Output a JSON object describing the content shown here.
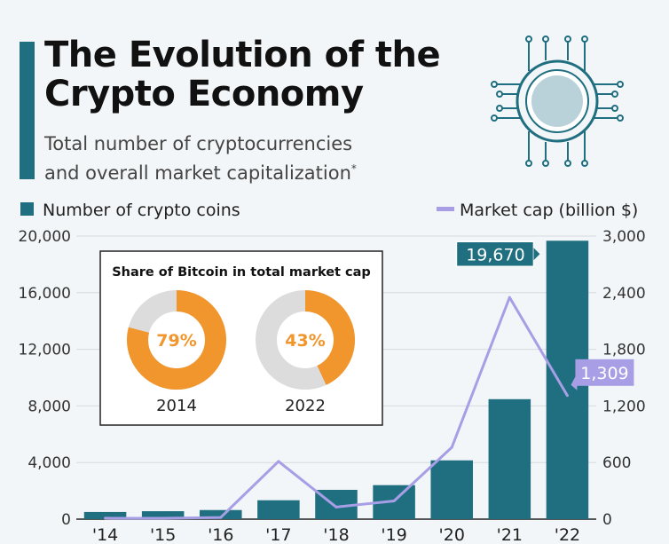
{
  "header": {
    "title_line1": "The Evolution of the",
    "title_line2": "Crypto Economy",
    "subtitle_line1": "Total number of cryptocurrencies",
    "subtitle_line2": "and overall market capitalization",
    "subtitle_mark": "*"
  },
  "inset": {
    "title": "Share of Bitcoin in total market cap",
    "donuts": [
      {
        "year": "2014",
        "value": 79,
        "label": "79%"
      },
      {
        "year": "2022",
        "value": 43,
        "label": "43%"
      }
    ]
  },
  "chart_data": {
    "type": "bar",
    "categories": [
      "'14",
      "'15",
      "'16",
      "'17",
      "'18",
      "'19",
      "'20",
      "'21",
      "'22"
    ],
    "series": [
      {
        "name": "Number of crypto coins",
        "type": "bar",
        "axis": "left",
        "values": [
          506,
          562,
          644,
          1335,
          2071,
          2403,
          4154,
          8477,
          19670
        ],
        "color": "#1f6f80"
      },
      {
        "name": "Market cap (billion $)",
        "type": "line",
        "axis": "right",
        "values": [
          10,
          9,
          18,
          612,
          128,
          193,
          761,
          2350,
          1309
        ],
        "color": "#a89ee6"
      }
    ],
    "left_axis": {
      "ticks": [
        "0",
        "4,000",
        "8,000",
        "12,000",
        "16,000",
        "20,000"
      ],
      "range": [
        0,
        20000
      ]
    },
    "right_axis": {
      "ticks": [
        "0",
        "600",
        "1,200",
        "1,800",
        "2,400",
        "3,000"
      ],
      "range": [
        0,
        3000
      ]
    },
    "callouts": {
      "bar_last": "19,670",
      "line_last": "1,309"
    },
    "grid": true,
    "legend_position": "top"
  },
  "colors": {
    "bar": "#1f6f80",
    "line": "#a89ee6",
    "donut_share": "#f0962c",
    "donut_rest": "#dcdcdc"
  }
}
